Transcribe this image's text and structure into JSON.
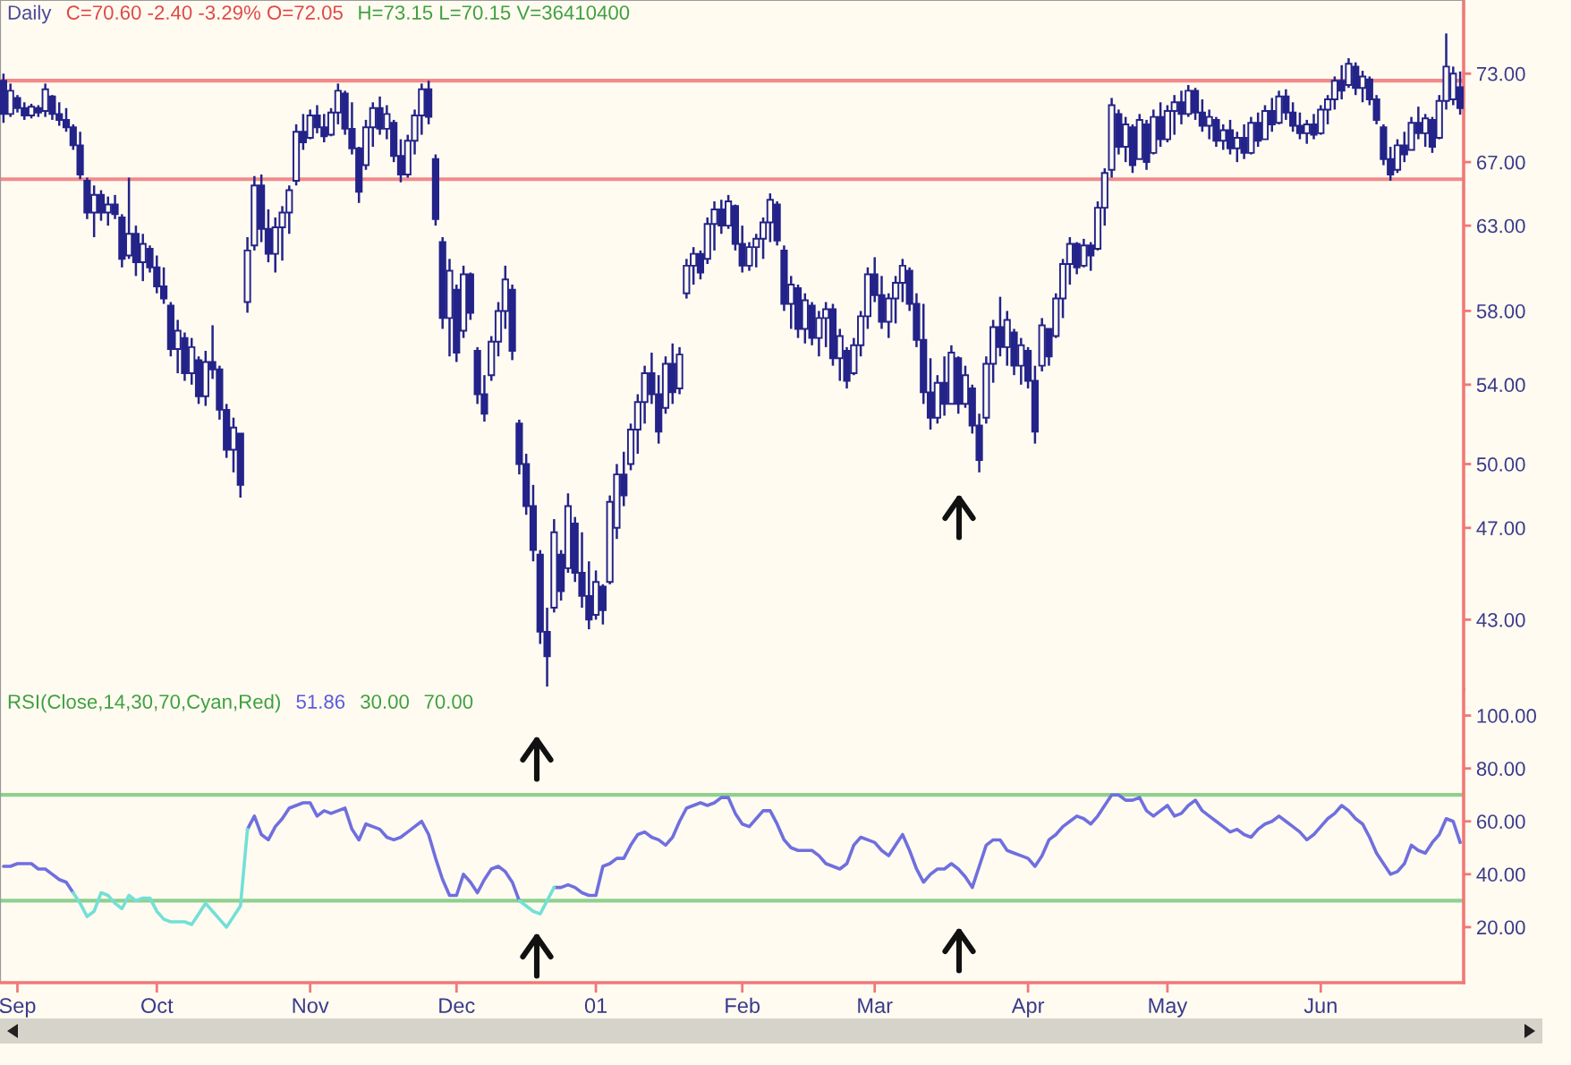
{
  "chart_data": [
    {
      "type": "candlestick",
      "title": "Daily",
      "annotations": [
        "C=70.60 -2.40 -3.29% O=72.05",
        "H=73.15 L=70.15 V=36410400"
      ],
      "categories": [
        null,
        null,
        null,
        null,
        null,
        null,
        null,
        null,
        null,
        null,
        null,
        null,
        null,
        null,
        null,
        null,
        null,
        null,
        null,
        null,
        null,
        null,
        null,
        null,
        null,
        null,
        null,
        null,
        null,
        null,
        null,
        null,
        null,
        null,
        null,
        null,
        null,
        null,
        null,
        null,
        null,
        null,
        null,
        null,
        null,
        null,
        null,
        null,
        null,
        null,
        null,
        null,
        null,
        null,
        null,
        null,
        null,
        null,
        null,
        null,
        null,
        null,
        null,
        null,
        null,
        null,
        null,
        null,
        null,
        null,
        null,
        null,
        null,
        null,
        null,
        null,
        null,
        null,
        null,
        null,
        null,
        null,
        null,
        null,
        null,
        null,
        null,
        null,
        null,
        null,
        null,
        null,
        null,
        null,
        null,
        null,
        null,
        null,
        null,
        null,
        null,
        null,
        null,
        null,
        null,
        null,
        null,
        null,
        null,
        null,
        null,
        null,
        null,
        null,
        null,
        null,
        null,
        null,
        null,
        null,
        null,
        null,
        null,
        null,
        null,
        null,
        null,
        null,
        null,
        null,
        null,
        null,
        null,
        null,
        null,
        null,
        null,
        null,
        null,
        null,
        null,
        null,
        null,
        null,
        null,
        null,
        null,
        null,
        null,
        null,
        null,
        null,
        null,
        null,
        null,
        null,
        null,
        null,
        null,
        null,
        null,
        null,
        null,
        null,
        null,
        null,
        null,
        null,
        null,
        null,
        null,
        null,
        null,
        null,
        null,
        null,
        null,
        null,
        null,
        null,
        null,
        null,
        null,
        null,
        null,
        null,
        null,
        null,
        null,
        null,
        null,
        null,
        null,
        null,
        null,
        null,
        null,
        null,
        null,
        null,
        null,
        null,
        null,
        null,
        null,
        null,
        null,
        null,
        null,
        null
      ],
      "ohlc": [
        [
          72.5,
          73.0,
          69.6,
          70.2
        ],
        [
          70.2,
          72.3,
          70.0,
          71.8
        ],
        [
          71.3,
          71.5,
          70.3,
          70.6
        ],
        [
          70.6,
          71.0,
          69.8,
          70.1
        ],
        [
          70.1,
          70.9,
          69.9,
          70.7
        ],
        [
          70.6,
          70.8,
          70.0,
          70.3
        ],
        [
          70.4,
          72.3,
          70.0,
          71.9
        ],
        [
          71.4,
          71.5,
          69.8,
          70.2
        ],
        [
          70.2,
          71.0,
          69.4,
          69.8
        ],
        [
          69.8,
          70.6,
          69.0,
          69.3
        ],
        [
          69.3,
          69.5,
          67.8,
          68.1
        ],
        [
          68.1,
          69.0,
          65.9,
          66.2
        ],
        [
          65.8,
          66.0,
          63.4,
          63.8
        ],
        [
          63.8,
          65.5,
          62.3,
          64.9
        ],
        [
          64.9,
          65.2,
          63.3,
          63.8
        ],
        [
          63.8,
          64.8,
          63.0,
          64.3
        ],
        [
          64.3,
          64.9,
          63.4,
          63.7
        ],
        [
          63.5,
          63.7,
          60.5,
          61.0
        ],
        [
          61.2,
          66.0,
          61.0,
          62.5
        ],
        [
          62.5,
          63.0,
          60.0,
          60.8
        ],
        [
          60.8,
          62.5,
          59.7,
          61.9
        ],
        [
          61.6,
          61.8,
          60.2,
          60.5
        ],
        [
          60.5,
          61.2,
          59.0,
          59.4
        ],
        [
          59.4,
          60.5,
          58.4,
          58.7
        ],
        [
          58.3,
          58.5,
          55.5,
          55.9
        ],
        [
          55.9,
          57.5,
          54.6,
          56.9
        ],
        [
          56.5,
          56.8,
          54.2,
          54.6
        ],
        [
          54.6,
          56.5,
          54.0,
          56.0
        ],
        [
          55.3,
          55.5,
          53.0,
          53.4
        ],
        [
          53.4,
          55.8,
          52.9,
          55.2
        ],
        [
          55.2,
          57.2,
          54.3,
          54.8
        ],
        [
          54.8,
          55.0,
          52.2,
          52.7
        ],
        [
          52.7,
          53.0,
          50.3,
          50.7
        ],
        [
          50.7,
          52.3,
          49.6,
          51.8
        ],
        [
          51.5,
          51.5,
          48.4,
          49.0
        ],
        [
          58.5,
          62.3,
          57.9,
          61.5
        ],
        [
          61.8,
          66.1,
          61.5,
          65.5
        ],
        [
          65.5,
          66.2,
          62.0,
          62.8
        ],
        [
          62.8,
          64.0,
          60.8,
          61.3
        ],
        [
          61.3,
          63.5,
          60.2,
          62.9
        ],
        [
          62.9,
          64.2,
          60.9,
          63.8
        ],
        [
          63.8,
          65.5,
          62.5,
          65.2
        ],
        [
          65.8,
          69.5,
          65.5,
          69.0
        ],
        [
          69.0,
          70.2,
          67.8,
          68.3
        ],
        [
          68.6,
          70.5,
          68.5,
          70.1
        ],
        [
          70.1,
          70.8,
          68.9,
          69.3
        ],
        [
          69.3,
          70.2,
          68.3,
          68.7
        ],
        [
          68.8,
          70.6,
          68.7,
          70.3
        ],
        [
          70.3,
          72.3,
          69.5,
          71.8
        ],
        [
          71.6,
          71.8,
          68.8,
          69.2
        ],
        [
          69.2,
          71.0,
          67.5,
          67.9
        ],
        [
          67.9,
          68.0,
          64.4,
          65.1
        ],
        [
          66.8,
          69.8,
          66.5,
          69.3
        ],
        [
          69.3,
          71.0,
          68.0,
          70.6
        ],
        [
          70.6,
          71.4,
          68.8,
          69.2
        ],
        [
          69.2,
          70.8,
          68.5,
          70.2
        ],
        [
          69.6,
          69.8,
          67.0,
          67.4
        ],
        [
          67.4,
          68.5,
          65.7,
          66.2
        ],
        [
          66.2,
          68.8,
          66.0,
          68.4
        ],
        [
          68.4,
          70.5,
          67.5,
          70.1
        ],
        [
          70.1,
          72.3,
          68.8,
          71.9
        ],
        [
          71.9,
          72.5,
          69.5,
          70.0
        ],
        [
          67.2,
          67.5,
          63.0,
          63.4
        ],
        [
          62.0,
          62.3,
          57.0,
          57.6
        ],
        [
          57.6,
          61.0,
          55.5,
          60.3
        ],
        [
          59.2,
          59.5,
          55.2,
          55.7
        ],
        [
          56.9,
          60.6,
          56.5,
          60.1
        ],
        [
          60.1,
          60.2,
          57.5,
          57.9
        ],
        [
          55.8,
          56.0,
          53.0,
          53.5
        ],
        [
          53.5,
          54.5,
          52.1,
          52.5
        ],
        [
          54.5,
          56.6,
          54.2,
          56.3
        ],
        [
          56.3,
          58.5,
          55.5,
          58.0
        ],
        [
          58.0,
          60.6,
          57.0,
          59.8
        ],
        [
          59.2,
          59.5,
          55.3,
          55.8
        ],
        [
          52.0,
          52.2,
          49.5,
          50.0
        ],
        [
          50.0,
          50.5,
          47.6,
          48.0
        ],
        [
          48.0,
          49.0,
          45.5,
          46.0
        ],
        [
          45.8,
          46.0,
          42.0,
          42.5
        ],
        [
          42.5,
          43.5,
          40.3,
          41.5
        ],
        [
          43.5,
          47.4,
          43.3,
          46.8
        ],
        [
          45.8,
          46.0,
          43.8,
          44.2
        ],
        [
          45.2,
          48.6,
          45.0,
          48.0
        ],
        [
          47.2,
          47.5,
          44.6,
          45.0
        ],
        [
          45.0,
          46.8,
          43.5,
          44.0
        ],
        [
          44.0,
          45.5,
          42.6,
          43.0
        ],
        [
          43.2,
          45.1,
          43.0,
          44.6
        ],
        [
          44.4,
          44.5,
          42.8,
          43.4
        ],
        [
          44.6,
          48.5,
          44.5,
          48.2
        ],
        [
          47.0,
          50.0,
          46.5,
          49.5
        ],
        [
          49.5,
          50.6,
          48.0,
          48.5
        ],
        [
          50.0,
          52.0,
          49.7,
          51.7
        ],
        [
          51.7,
          53.5,
          50.5,
          53.1
        ],
        [
          53.1,
          55.0,
          52.0,
          54.6
        ],
        [
          54.6,
          55.7,
          53.0,
          53.5
        ],
        [
          53.5,
          54.5,
          51.0,
          51.6
        ],
        [
          52.8,
          55.5,
          52.5,
          55.1
        ],
        [
          55.1,
          56.2,
          53.0,
          53.6
        ],
        [
          53.8,
          56.0,
          53.5,
          55.6
        ],
        [
          59.0,
          61.0,
          58.7,
          60.6
        ],
        [
          60.6,
          61.7,
          59.5,
          61.3
        ],
        [
          61.3,
          61.5,
          59.8,
          60.2
        ],
        [
          61.0,
          63.5,
          60.7,
          63.1
        ],
        [
          63.1,
          64.5,
          61.5,
          64.0
        ],
        [
          64.0,
          64.6,
          62.5,
          63.0
        ],
        [
          63.0,
          64.9,
          62.8,
          64.5
        ],
        [
          64.2,
          64.3,
          61.5,
          61.9
        ],
        [
          61.9,
          63.0,
          60.2,
          60.6
        ],
        [
          60.6,
          62.0,
          60.3,
          61.7
        ],
        [
          61.7,
          62.5,
          60.5,
          62.2
        ],
        [
          62.2,
          63.5,
          61.0,
          63.2
        ],
        [
          63.2,
          65.0,
          62.0,
          64.6
        ],
        [
          64.3,
          64.5,
          61.8,
          62.1
        ],
        [
          61.5,
          61.8,
          58.0,
          58.4
        ],
        [
          58.4,
          60.0,
          57.0,
          59.5
        ],
        [
          59.3,
          59.5,
          56.5,
          57.0
        ],
        [
          57.0,
          59.0,
          56.2,
          58.6
        ],
        [
          58.3,
          58.5,
          56.1,
          56.5
        ],
        [
          56.5,
          58.0,
          55.5,
          57.6
        ],
        [
          57.6,
          58.5,
          56.0,
          58.1
        ],
        [
          58.1,
          58.4,
          55.0,
          55.4
        ],
        [
          55.4,
          57.0,
          54.2,
          56.6
        ],
        [
          55.8,
          56.0,
          53.8,
          54.2
        ],
        [
          54.6,
          56.5,
          54.5,
          56.1
        ],
        [
          56.1,
          58.0,
          55.5,
          57.7
        ],
        [
          57.7,
          60.5,
          57.0,
          60.1
        ],
        [
          60.1,
          61.1,
          58.5,
          58.9
        ],
        [
          58.9,
          60.0,
          57.0,
          57.4
        ],
        [
          57.4,
          59.0,
          56.5,
          58.7
        ],
        [
          58.7,
          60.0,
          57.3,
          59.6
        ],
        [
          59.6,
          61.0,
          58.5,
          60.6
        ],
        [
          60.3,
          60.5,
          58.0,
          58.4
        ],
        [
          58.4,
          59.0,
          56.0,
          56.4
        ],
        [
          56.4,
          58.4,
          53.0,
          53.6
        ],
        [
          53.6,
          55.4,
          51.7,
          52.3
        ],
        [
          52.3,
          54.5,
          52.0,
          54.1
        ],
        [
          54.1,
          55.5,
          52.4,
          53.0
        ],
        [
          53.0,
          56.1,
          53.0,
          55.7
        ],
        [
          55.4,
          55.5,
          52.5,
          53.0
        ],
        [
          53.0,
          55.0,
          52.8,
          54.5
        ],
        [
          53.8,
          54.0,
          51.5,
          51.9
        ],
        [
          51.9,
          52.5,
          49.6,
          50.2
        ],
        [
          52.3,
          55.5,
          52.0,
          55.1
        ],
        [
          55.1,
          57.5,
          54.1,
          57.1
        ],
        [
          57.1,
          58.8,
          55.5,
          56.0
        ],
        [
          56.0,
          58.0,
          55.0,
          57.5
        ],
        [
          56.8,
          57.0,
          54.5,
          55.0
        ],
        [
          55.0,
          56.5,
          54.0,
          56.1
        ],
        [
          55.8,
          56.0,
          53.8,
          54.2
        ],
        [
          54.2,
          55.0,
          51.0,
          51.6
        ],
        [
          55.0,
          57.6,
          54.7,
          57.2
        ],
        [
          57.0,
          57.0,
          55.0,
          55.5
        ],
        [
          56.6,
          59.0,
          56.5,
          58.7
        ],
        [
          58.7,
          61.0,
          57.6,
          60.7
        ],
        [
          60.7,
          62.3,
          59.5,
          61.9
        ],
        [
          61.9,
          62.0,
          60.1,
          60.5
        ],
        [
          60.6,
          62.2,
          60.5,
          61.8
        ],
        [
          61.8,
          62.0,
          60.3,
          61.2
        ],
        [
          61.6,
          64.5,
          61.5,
          64.1
        ],
        [
          64.1,
          66.6,
          63.0,
          66.3
        ],
        [
          66.5,
          71.3,
          66.0,
          70.8
        ],
        [
          70.2,
          70.5,
          67.5,
          68.0
        ],
        [
          68.0,
          70.0,
          67.0,
          69.5
        ],
        [
          69.3,
          69.5,
          66.3,
          66.8
        ],
        [
          67.2,
          70.2,
          67.2,
          69.8
        ],
        [
          69.5,
          69.8,
          66.5,
          67.0
        ],
        [
          67.6,
          70.5,
          67.5,
          70.0
        ],
        [
          70.0,
          71.0,
          68.0,
          68.5
        ],
        [
          68.5,
          70.8,
          68.3,
          70.4
        ],
        [
          70.4,
          71.5,
          68.8,
          71.0
        ],
        [
          71.0,
          71.8,
          69.5,
          70.2
        ],
        [
          70.2,
          72.2,
          70.0,
          71.8
        ],
        [
          71.8,
          72.0,
          69.8,
          70.3
        ],
        [
          70.3,
          71.2,
          69.0,
          69.4
        ],
        [
          69.4,
          70.5,
          68.5,
          70.0
        ],
        [
          69.8,
          70.0,
          68.0,
          68.4
        ],
        [
          68.4,
          69.5,
          67.8,
          69.1
        ],
        [
          69.1,
          69.8,
          67.5,
          67.9
        ],
        [
          67.9,
          69.0,
          67.0,
          68.6
        ],
        [
          68.6,
          69.5,
          67.2,
          67.6
        ],
        [
          67.6,
          70.0,
          67.5,
          69.6
        ],
        [
          69.6,
          70.3,
          68.0,
          68.4
        ],
        [
          68.5,
          70.8,
          68.5,
          70.4
        ],
        [
          70.4,
          71.3,
          69.0,
          69.5
        ],
        [
          69.6,
          71.8,
          69.5,
          71.4
        ],
        [
          71.4,
          71.9,
          69.8,
          70.3
        ],
        [
          70.3,
          71.0,
          69.0,
          69.4
        ],
        [
          69.4,
          70.3,
          68.5,
          68.9
        ],
        [
          68.9,
          69.8,
          68.2,
          69.5
        ],
        [
          69.5,
          70.2,
          68.5,
          68.8
        ],
        [
          68.9,
          70.8,
          68.8,
          70.5
        ],
        [
          70.5,
          71.5,
          69.5,
          71.2
        ],
        [
          71.2,
          72.8,
          70.5,
          72.5
        ],
        [
          72.5,
          73.6,
          71.2,
          71.8
        ],
        [
          72.2,
          74.1,
          72.0,
          73.7
        ],
        [
          73.5,
          73.8,
          71.5,
          72.0
        ],
        [
          72.0,
          73.2,
          71.0,
          72.8
        ],
        [
          72.6,
          72.8,
          70.8,
          71.2
        ],
        [
          71.2,
          71.5,
          69.5,
          69.8
        ],
        [
          69.3,
          69.5,
          66.8,
          67.2
        ],
        [
          67.2,
          68.0,
          65.8,
          66.2
        ],
        [
          66.5,
          68.5,
          66.3,
          68.1
        ],
        [
          68.1,
          69.0,
          67.0,
          67.5
        ],
        [
          67.8,
          70.0,
          67.8,
          69.6
        ],
        [
          69.6,
          70.7,
          68.5,
          68.9
        ],
        [
          68.9,
          70.2,
          68.0,
          69.9
        ],
        [
          69.8,
          70.0,
          67.6,
          68.0
        ],
        [
          68.6,
          71.5,
          68.5,
          71.1
        ],
        [
          71.1,
          75.9,
          70.5,
          73.5
        ],
        [
          71.2,
          73.5,
          70.8,
          73.0
        ],
        [
          72.05,
          73.15,
          70.15,
          70.6
        ]
      ],
      "color": "#23238a",
      "log": true,
      "ylim": [
        40.2,
        78.4
      ],
      "yticks": [
        {
          "value": 43,
          "label": "43.00"
        },
        {
          "value": 47,
          "label": "47.00"
        },
        {
          "value": 50,
          "label": "50.00"
        },
        {
          "value": 54,
          "label": "54.00"
        },
        {
          "value": 58,
          "label": "58.00"
        },
        {
          "value": 63,
          "label": "63.00"
        },
        {
          "value": 67,
          "label": "67.00"
        },
        {
          "value": 73,
          "label": "73.00"
        }
      ],
      "ref_lines": [
        {
          "axis": "y",
          "value": 72.5,
          "color": "#f28a8a"
        },
        {
          "axis": "y",
          "value": 65.9,
          "color": "#f28a8a"
        }
      ],
      "tick_labels": "y"
    },
    {
      "type": "line",
      "title": "RSI(Close,14,30,70,Cyan,Red)",
      "annotations": [
        "51.86",
        "30.00",
        "70.00"
      ],
      "categories": [
        null,
        null,
        "Sep",
        null,
        null,
        null,
        null,
        null,
        null,
        null,
        null,
        null,
        null,
        null,
        null,
        null,
        null,
        null,
        null,
        null,
        null,
        null,
        "Oct",
        null,
        null,
        null,
        null,
        null,
        null,
        null,
        null,
        null,
        null,
        null,
        null,
        null,
        null,
        null,
        null,
        null,
        null,
        null,
        null,
        null,
        "Nov",
        null,
        null,
        null,
        null,
        null,
        null,
        null,
        null,
        null,
        null,
        null,
        null,
        null,
        null,
        null,
        null,
        null,
        null,
        null,
        null,
        "Dec",
        null,
        null,
        null,
        null,
        null,
        null,
        null,
        null,
        null,
        null,
        null,
        null,
        null,
        null,
        null,
        null,
        null,
        null,
        null,
        "01",
        null,
        null,
        null,
        null,
        null,
        null,
        null,
        null,
        null,
        null,
        null,
        null,
        null,
        null,
        null,
        null,
        null,
        null,
        null,
        null,
        "Feb",
        null,
        null,
        null,
        null,
        null,
        null,
        null,
        null,
        null,
        null,
        null,
        null,
        null,
        null,
        null,
        null,
        null,
        null,
        "Mar",
        null,
        null,
        null,
        null,
        null,
        null,
        null,
        null,
        null,
        null,
        null,
        null,
        null,
        null,
        null,
        null,
        null,
        null,
        null,
        null,
        null,
        "Apr",
        null,
        null,
        null,
        null,
        null,
        null,
        null,
        null,
        null,
        null,
        null,
        null,
        null,
        null,
        null,
        null,
        null,
        null,
        null,
        "May",
        null,
        null,
        null,
        null,
        null,
        null,
        null,
        null,
        null,
        null,
        null,
        null,
        null,
        null,
        null,
        null,
        null,
        null,
        null,
        null,
        null,
        "Jun",
        null,
        null,
        null,
        null,
        null,
        null,
        null,
        null,
        null,
        null,
        null,
        null,
        null,
        null,
        null,
        null,
        null,
        null,
        null,
        null
      ],
      "series": [
        {
          "color": "#6f6fdf",
          "values": [
            43,
            43,
            44,
            44,
            44,
            42,
            42,
            40,
            38,
            37,
            33,
            null,
            null,
            null,
            null,
            null,
            null,
            null,
            null,
            null,
            null,
            null,
            null,
            null,
            null,
            null,
            null,
            null,
            null,
            null,
            null,
            null,
            null,
            null,
            null,
            57,
            62,
            55,
            53,
            58,
            61,
            65,
            66,
            67,
            67,
            62,
            64,
            63,
            64,
            65,
            57,
            53,
            59,
            58,
            57,
            54,
            53,
            54,
            56,
            58,
            60,
            55,
            46,
            38,
            32,
            32,
            40,
            37,
            33,
            38,
            42,
            43,
            41,
            37,
            30,
            null,
            null,
            null,
            null,
            35,
            35,
            36,
            35,
            33,
            32,
            32,
            43,
            44,
            46,
            46,
            51,
            55,
            56,
            54,
            53,
            51,
            54,
            60,
            65,
            66,
            67,
            66,
            67,
            69,
            69,
            63,
            59,
            58,
            61,
            64,
            64,
            59,
            53,
            50,
            49,
            49,
            49,
            47,
            44,
            43,
            42,
            44,
            51,
            54,
            53,
            52,
            49,
            47,
            51,
            55,
            49,
            42,
            37,
            40,
            42,
            42,
            44,
            42,
            39,
            35,
            43,
            51,
            53,
            53,
            49,
            48,
            47,
            46,
            43,
            47,
            53,
            55,
            58,
            60,
            62,
            61,
            59,
            62,
            66,
            70,
            70,
            68,
            68,
            69,
            64,
            62,
            64,
            66,
            62,
            63,
            66,
            68,
            64,
            62,
            60,
            58,
            56,
            57,
            55,
            54,
            57,
            59,
            60,
            62,
            60,
            58,
            56,
            53,
            55,
            58,
            61,
            63,
            66,
            64,
            61,
            59,
            54,
            48,
            44,
            40,
            41,
            44,
            51,
            49,
            48,
            52,
            55,
            61,
            60,
            52
          ]
        },
        {
          "color": "#72e0d6",
          "values": [
            null,
            null,
            null,
            null,
            null,
            null,
            null,
            null,
            null,
            null,
            33,
            29,
            24,
            26,
            33,
            32,
            29,
            27,
            32,
            30,
            31,
            31,
            26,
            23,
            22,
            22,
            22,
            21,
            25,
            29,
            26,
            23,
            20,
            24,
            28,
            57,
            null,
            null,
            null,
            null,
            null,
            null,
            null,
            null,
            null,
            null,
            null,
            null,
            null,
            null,
            null,
            null,
            null,
            null,
            null,
            null,
            null,
            null,
            null,
            null,
            null,
            null,
            null,
            null,
            null,
            null,
            null,
            null,
            null,
            null,
            null,
            null,
            null,
            null,
            30,
            28,
            26,
            25,
            30,
            35,
            null,
            null,
            null,
            null,
            null,
            null,
            null,
            null,
            null,
            null,
            null,
            null,
            null,
            null,
            null,
            null,
            null,
            null,
            null,
            null,
            null,
            null,
            null,
            null,
            null,
            null,
            null,
            null,
            null,
            null,
            null,
            null,
            null,
            null,
            null,
            null,
            null,
            null,
            null,
            null,
            null,
            null,
            null,
            null,
            null,
            null,
            null,
            null,
            null,
            null,
            null,
            null,
            null,
            null,
            null,
            null,
            null,
            null,
            null,
            null,
            null,
            null,
            null,
            null,
            null,
            null,
            null,
            null,
            null,
            null,
            null,
            null,
            null,
            null,
            null,
            null,
            null,
            null,
            null,
            null,
            null,
            null,
            null,
            null,
            null,
            null,
            null,
            null,
            null,
            null,
            null,
            null,
            null,
            null,
            null,
            null,
            null,
            null,
            null,
            null,
            null,
            null,
            null,
            null,
            null,
            null,
            null,
            null,
            null,
            null,
            null,
            null,
            null,
            null,
            null,
            null,
            null,
            null,
            null,
            null,
            null,
            null,
            null,
            null,
            null,
            null,
            null,
            null,
            null,
            null
          ]
        }
      ],
      "ylim": [
        -1,
        110
      ],
      "yticks": [
        {
          "value": 20,
          "label": "20.00"
        },
        {
          "value": 40,
          "label": "40.00"
        },
        {
          "value": 60,
          "label": "60.00"
        },
        {
          "value": 80,
          "label": "80.00"
        },
        {
          "value": 100,
          "label": "100.00"
        }
      ],
      "ref_lines": [
        {
          "axis": "y",
          "value": 70,
          "color": "#8fd08f"
        },
        {
          "axis": "y",
          "value": 30,
          "color": "#8fd08f"
        }
      ]
    }
  ]
}
